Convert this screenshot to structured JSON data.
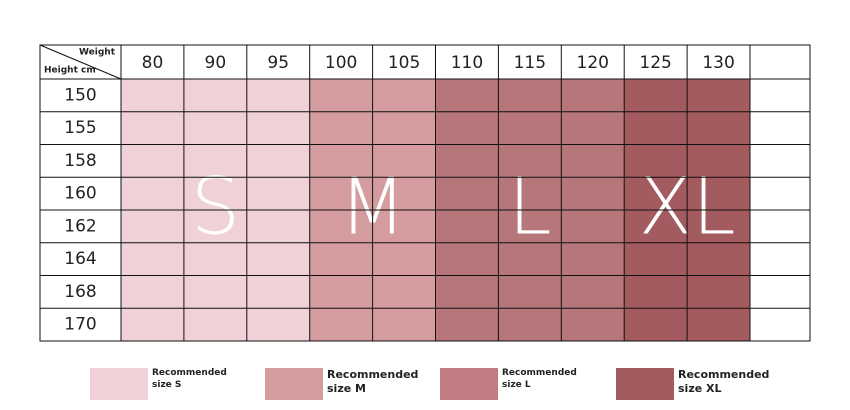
{
  "header": {
    "weight_label": "Weight",
    "height_label": "Height cm"
  },
  "size_groups": [
    {
      "label": "S",
      "weights": [
        80,
        90,
        95
      ],
      "color": "#efd1d7"
    },
    {
      "label": "M",
      "weights": [
        100,
        105
      ],
      "color": "#d49c9e"
    },
    {
      "label": "L",
      "weights": [
        110,
        115,
        120
      ],
      "color": "#b7767a"
    },
    {
      "label": "XL",
      "weights": [
        125,
        130
      ],
      "color": "#a35b5f"
    }
  ],
  "heights": [
    150,
    155,
    158,
    160,
    162,
    164,
    168,
    170
  ],
  "legend": [
    {
      "text": "Recommended size S",
      "color": "#efd1d7"
    },
    {
      "text": "Recommended size M",
      "color": "#d49c9e"
    },
    {
      "text": "Recommended size L",
      "color": "#c27b80"
    },
    {
      "text": "Recommended size XL",
      "color": "#a35b5f"
    }
  ]
}
